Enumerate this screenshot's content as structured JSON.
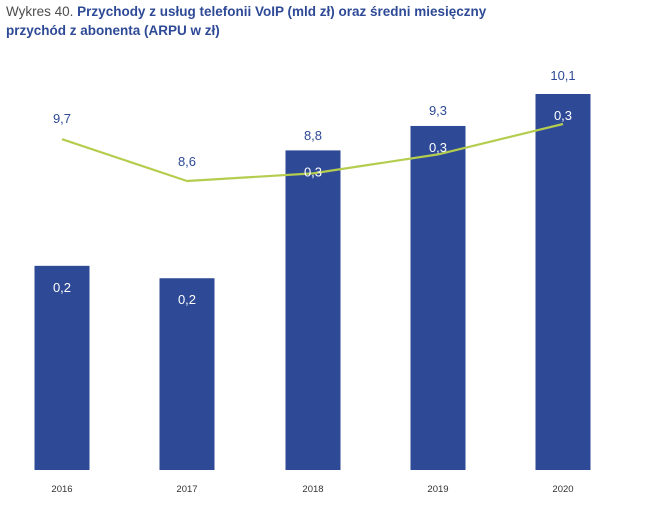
{
  "title": {
    "prefix": "Wykres 40.",
    "line1": "Przychody z usług telefonii VoIP (mld zł) oraz średni miesięczny",
    "line2": "przychód z abonenta (ARPU w zł)"
  },
  "colors": {
    "bar": "#2e4a96",
    "line": "#b5cd4f",
    "text_blue": "#2e4a96",
    "text_white": "#ffffff",
    "tick": "#333333"
  },
  "chart_data": {
    "type": "bar+line",
    "categories": [
      "2016",
      "2017",
      "2018",
      "2019",
      "2020"
    ],
    "series": [
      {
        "type": "bar",
        "values": [
          0.2,
          0.2,
          0.3,
          0.3,
          0.3
        ],
        "labels": [
          "0,2",
          "0,2",
          "0,3",
          "0,3",
          "0,3"
        ]
      },
      {
        "type": "line",
        "values": [
          9.7,
          8.6,
          8.8,
          9.3,
          10.1
        ],
        "labels": [
          "9,7",
          "8,6",
          "8,8",
          "9,3",
          "10,1"
        ]
      }
    ],
    "bar_heights_relative": [
      0.543,
      0.51,
      0.85,
      0.915,
      1.0
    ],
    "grid": false,
    "legend": "none"
  }
}
